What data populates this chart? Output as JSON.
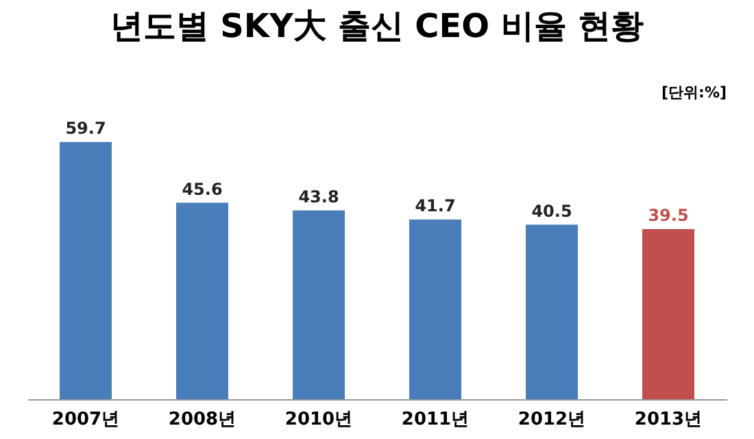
{
  "chart_data": {
    "type": "bar",
    "title": "년도별 SKY大 출신 CEO 비율 현황",
    "annotations": [
      "[단위:%]"
    ],
    "categories": [
      "2007년",
      "2008년",
      "2010년",
      "2011년",
      "2012년",
      "2013년"
    ],
    "values": [
      59.7,
      45.6,
      43.8,
      41.7,
      40.5,
      39.5
    ],
    "colors": [
      "#4a7ebb",
      "#4a7ebb",
      "#4a7ebb",
      "#4a7ebb",
      "#4a7ebb",
      "#c0504d"
    ],
    "data_labels": true
  }
}
